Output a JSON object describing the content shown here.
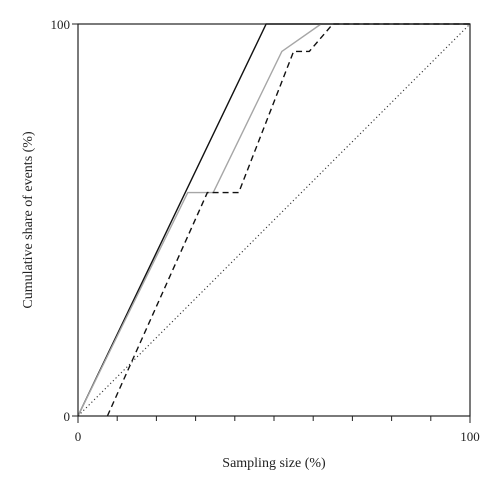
{
  "chart_data": {
    "type": "line",
    "xlabel": "Sampling size (%)",
    "ylabel": "Cumulative share of events (%)",
    "xlim": [
      0,
      100
    ],
    "ylim": [
      0,
      100
    ],
    "x_tick_labels": [
      "0",
      "100"
    ],
    "y_tick_labels": [
      "0",
      "100"
    ],
    "x_minor_ticks": [
      10,
      20,
      30,
      40,
      50,
      60,
      70,
      80,
      90
    ],
    "y_minor_ticks": [],
    "grid": false,
    "legend": "none",
    "series": [
      {
        "style": "solid",
        "color": "#111111",
        "x": [
          0,
          48,
          100
        ],
        "y": [
          0,
          100,
          100
        ]
      },
      {
        "style": "solid",
        "color": "#a6a6a6",
        "x": [
          0,
          28,
          34.5,
          52,
          62,
          100
        ],
        "y": [
          0,
          57,
          57,
          93,
          100,
          100
        ]
      },
      {
        "style": "dashed",
        "color": "#111111",
        "x": [
          7.5,
          33,
          41,
          55,
          59,
          65,
          100
        ],
        "y": [
          0,
          57,
          57,
          93,
          93,
          100,
          100
        ]
      },
      {
        "style": "dotted",
        "color": "#333333",
        "x": [
          0,
          100
        ],
        "y": [
          0,
          100
        ]
      }
    ]
  }
}
